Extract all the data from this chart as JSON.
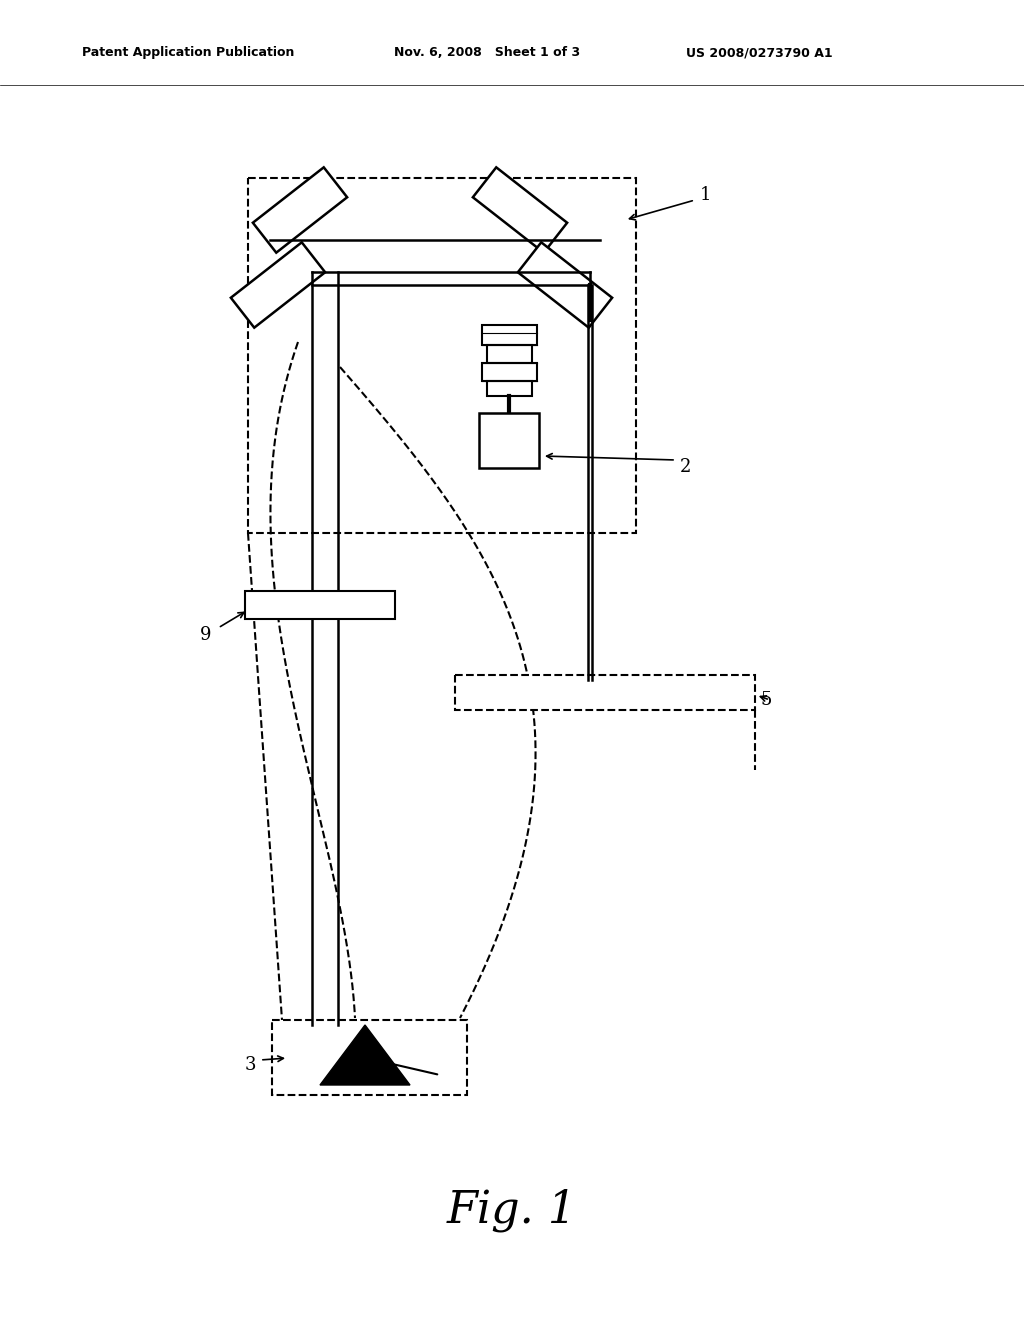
{
  "title": "Fig. 1",
  "header_left": "Patent Application Publication",
  "header_mid": "Nov. 6, 2008   Sheet 1 of 3",
  "header_right": "US 2008/0273790 A1",
  "bg_color": "#ffffff"
}
